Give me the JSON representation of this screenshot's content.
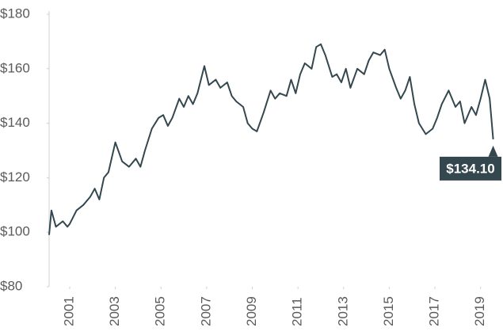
{
  "chart_data": {
    "type": "line",
    "x": [
      2000.1,
      2000.2,
      2000.4,
      2000.7,
      2000.9,
      2001.0,
      2001.3,
      2001.6,
      2001.9,
      2002.1,
      2002.3,
      2002.5,
      2002.7,
      2003.0,
      2003.3,
      2003.6,
      2003.9,
      2004.1,
      2004.3,
      2004.6,
      2004.9,
      2005.1,
      2005.3,
      2005.5,
      2005.8,
      2006.0,
      2006.2,
      2006.4,
      2006.6,
      2006.9,
      2007.1,
      2007.4,
      2007.6,
      2007.9,
      2008.1,
      2008.3,
      2008.6,
      2008.8,
      2009.0,
      2009.2,
      2009.5,
      2009.8,
      2010.0,
      2010.2,
      2010.5,
      2010.7,
      2010.9,
      2011.1,
      2011.3,
      2011.6,
      2011.8,
      2012.0,
      2012.2,
      2012.5,
      2012.7,
      2012.9,
      2013.1,
      2013.3,
      2013.6,
      2013.9,
      2014.1,
      2014.3,
      2014.6,
      2014.8,
      2015.0,
      2015.3,
      2015.5,
      2015.7,
      2015.9,
      2016.1,
      2016.3,
      2016.6,
      2016.9,
      2017.1,
      2017.3,
      2017.6,
      2017.9,
      2018.1,
      2018.3,
      2018.6,
      2018.8,
      2019.0,
      2019.2,
      2019.4,
      2019.55
    ],
    "values": [
      99,
      108,
      102,
      104,
      102,
      103,
      108,
      110,
      113,
      116,
      112,
      120,
      122,
      133,
      126,
      124,
      127,
      124,
      130,
      138,
      142,
      143,
      139,
      142,
      149,
      146,
      150,
      147,
      151,
      161,
      154,
      156,
      153,
      155,
      150,
      148,
      146,
      140,
      138,
      137,
      144,
      152,
      149,
      151,
      150,
      156,
      151,
      158,
      162,
      160,
      168,
      169,
      165,
      157,
      158,
      155,
      160,
      153,
      160,
      158,
      163,
      166,
      165,
      167,
      160,
      153,
      149,
      152,
      157,
      147,
      140,
      136,
      138,
      142,
      147,
      152,
      146,
      148,
      140,
      146,
      143,
      149,
      156,
      149,
      134.1
    ],
    "color": "#34474f",
    "end_label": "$134.10",
    "xlim": [
      2000.1,
      2019.6
    ],
    "xticks": [
      2001,
      2003,
      2005,
      2007,
      2009,
      2011,
      2013,
      2015,
      2017,
      2019
    ],
    "ylim": [
      80,
      180
    ],
    "yticks": [
      {
        "value": 80,
        "label": "$80"
      },
      {
        "value": 100,
        "label": "$100"
      },
      {
        "value": 120,
        "label": "$120"
      },
      {
        "value": 140,
        "label": "$140"
      },
      {
        "value": 160,
        "label": "$160"
      },
      {
        "value": 180,
        "label": "$180"
      }
    ],
    "grid": false
  }
}
